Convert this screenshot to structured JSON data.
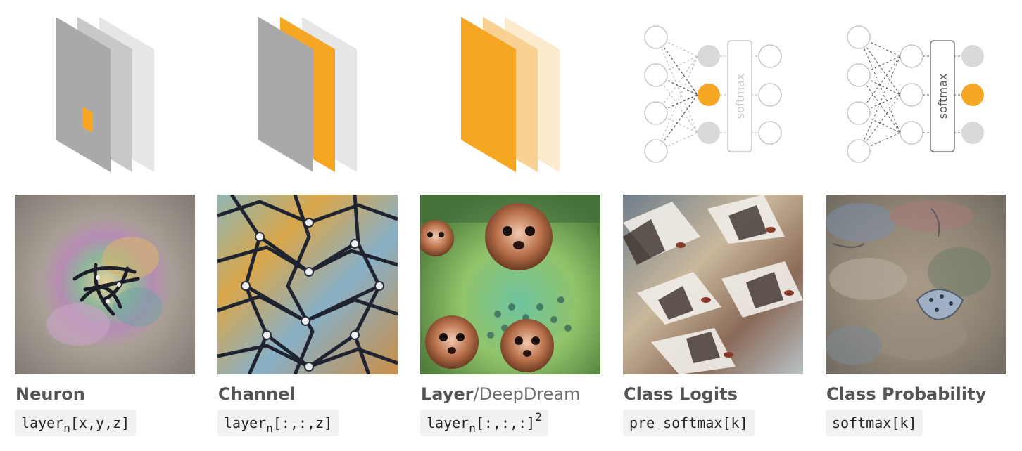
{
  "columns": [
    {
      "id": "neuron",
      "title": "Neuron",
      "subtitle": "",
      "code": "layer",
      "code_sub": "n",
      "code_rest": "[x,y,z]",
      "code_sup": ""
    },
    {
      "id": "channel",
      "title": "Channel",
      "subtitle": "",
      "code": "layer",
      "code_sub": "n",
      "code_rest": "[:,:,z]",
      "code_sup": ""
    },
    {
      "id": "layer",
      "title": "Layer",
      "subtitle": "/DeepDream",
      "code": "layer",
      "code_sub": "n",
      "code_rest": "[:,:,:]",
      "code_sup": "2"
    },
    {
      "id": "class-logits",
      "title": "Class Logits",
      "subtitle": "",
      "code": "pre_softmax[k]",
      "code_sub": "",
      "code_rest": "",
      "code_sup": ""
    },
    {
      "id": "class-probability",
      "title": "Class Probability",
      "subtitle": "",
      "code": "softmax[k]",
      "code_sub": "",
      "code_rest": "",
      "code_sup": ""
    }
  ],
  "softmax_label": "softmax",
  "colors": {
    "accent": "#f5a623",
    "layer_dark": "#a9a9a9",
    "layer_mid": "#c8c8c8",
    "layer_light": "#e6e6e6",
    "node_fill_gray": "#d9d9d9",
    "text_dark": "#545454"
  },
  "images": [
    {
      "id": "neuron-visualization",
      "icon": "neuron-feature-visualization"
    },
    {
      "id": "channel-visualization",
      "icon": "channel-feature-visualization"
    },
    {
      "id": "layer-visualization",
      "icon": "deepdream-layer-visualization"
    },
    {
      "id": "class-logits-visualization",
      "icon": "class-logits-feature-visualization"
    },
    {
      "id": "class-probability-visualization",
      "icon": "class-probability-feature-visualization"
    }
  ]
}
